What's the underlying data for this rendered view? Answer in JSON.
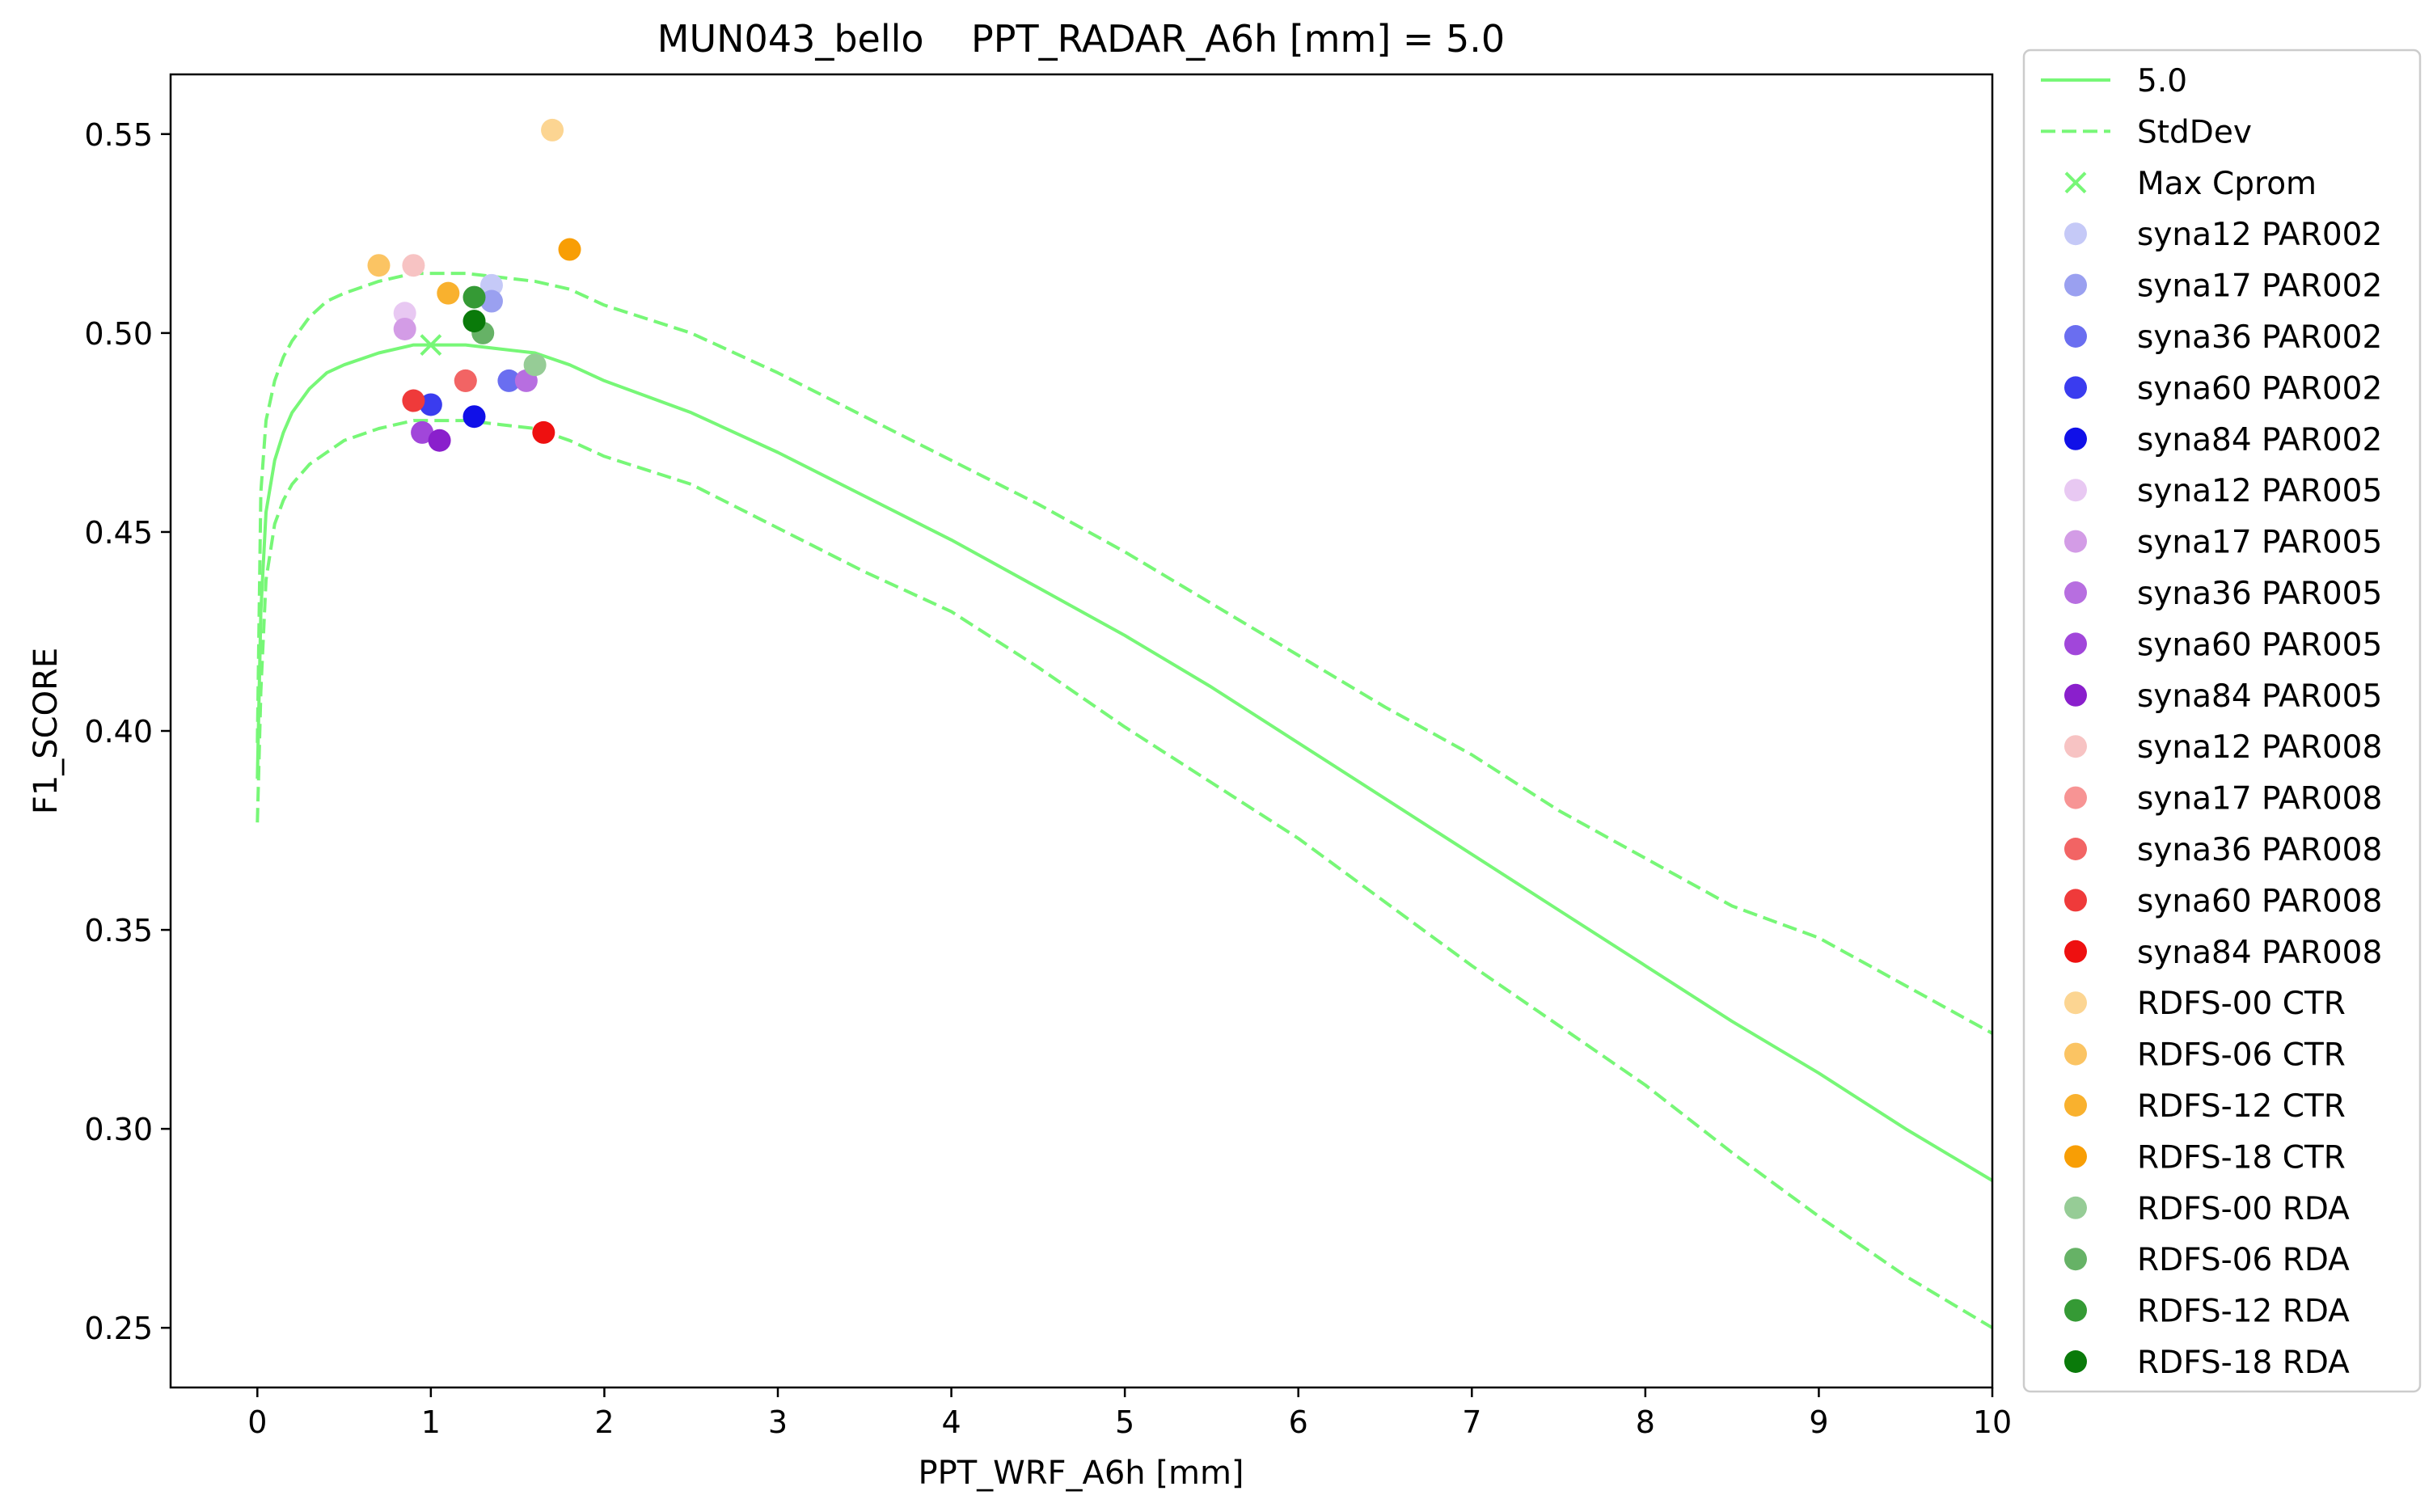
{
  "chart_data": {
    "type": "line",
    "title": "MUN043_bello    PPT_RADAR_A6h [mm] = 5.0",
    "xlabel": "PPT_WRF_A6h [mm]",
    "ylabel": "F1_SCORE",
    "xlim": [
      -0.5,
      10
    ],
    "ylim": [
      0.235,
      0.565
    ],
    "x_ticks": [
      0,
      1,
      2,
      3,
      4,
      5,
      6,
      7,
      8,
      9,
      10
    ],
    "x_tick_labels": [
      "0",
      "1",
      "2",
      "3",
      "4",
      "5",
      "6",
      "7",
      "8",
      "9",
      "10"
    ],
    "y_ticks": [
      0.25,
      0.3,
      0.35,
      0.4,
      0.45,
      0.5,
      0.55
    ],
    "y_tick_labels": [
      "0.25",
      "0.30",
      "0.35",
      "0.40",
      "0.45",
      "0.50",
      "0.55"
    ],
    "grid": false,
    "legend_position": "outside-right",
    "line_color": "#77f777",
    "lines": [
      {
        "name": "5.0",
        "style": "solid",
        "color": "#77f777",
        "x": [
          0,
          0.02,
          0.05,
          0.1,
          0.15,
          0.2,
          0.3,
          0.4,
          0.5,
          0.7,
          0.9,
          1.0,
          1.2,
          1.4,
          1.6,
          1.8,
          2.0,
          2.5,
          3.0,
          3.5,
          4.0,
          4.5,
          5.0,
          5.5,
          6.0,
          6.5,
          7.0,
          7.5,
          8.0,
          8.5,
          9.0,
          9.5,
          10.0
        ],
        "y": [
          0.388,
          0.43,
          0.455,
          0.468,
          0.475,
          0.48,
          0.486,
          0.49,
          0.492,
          0.495,
          0.497,
          0.497,
          0.497,
          0.496,
          0.495,
          0.492,
          0.488,
          0.48,
          0.47,
          0.459,
          0.448,
          0.436,
          0.424,
          0.411,
          0.397,
          0.383,
          0.369,
          0.355,
          0.341,
          0.327,
          0.314,
          0.3,
          0.287
        ]
      },
      {
        "name": "StdDev",
        "style": "dashed",
        "color": "#77f777",
        "x": [
          0,
          0.02,
          0.05,
          0.1,
          0.15,
          0.2,
          0.3,
          0.4,
          0.5,
          0.7,
          0.9,
          1.0,
          1.2,
          1.4,
          1.6,
          1.8,
          2.0,
          2.5,
          3.0,
          3.5,
          4.0,
          4.5,
          5.0,
          5.5,
          6.0,
          6.5,
          7.0,
          7.5,
          8.0,
          8.5,
          9.0,
          9.5,
          10.0
        ],
        "y": [
          0.397,
          0.46,
          0.478,
          0.488,
          0.494,
          0.498,
          0.504,
          0.508,
          0.51,
          0.513,
          0.515,
          0.515,
          0.515,
          0.514,
          0.513,
          0.511,
          0.507,
          0.5,
          0.49,
          0.479,
          0.468,
          0.457,
          0.445,
          0.432,
          0.419,
          0.406,
          0.394,
          0.38,
          0.368,
          0.356,
          0.348,
          0.336,
          0.324
        ]
      },
      {
        "name": "",
        "style": "dashed",
        "color": "#77f777",
        "x": [
          0,
          0.02,
          0.05,
          0.1,
          0.15,
          0.2,
          0.3,
          0.4,
          0.5,
          0.7,
          0.9,
          1.0,
          1.2,
          1.4,
          1.6,
          1.8,
          2.0,
          2.5,
          3.0,
          3.5,
          4.0,
          4.5,
          5.0,
          5.5,
          6.0,
          6.5,
          7.0,
          7.5,
          8.0,
          8.5,
          9.0,
          9.5,
          10.0
        ],
        "y": [
          0.377,
          0.41,
          0.438,
          0.452,
          0.458,
          0.462,
          0.467,
          0.47,
          0.473,
          0.476,
          0.478,
          0.478,
          0.478,
          0.477,
          0.476,
          0.473,
          0.469,
          0.462,
          0.451,
          0.44,
          0.43,
          0.416,
          0.401,
          0.387,
          0.373,
          0.357,
          0.341,
          0.326,
          0.311,
          0.294,
          0.278,
          0.263,
          0.25
        ]
      }
    ],
    "max_marker": {
      "name": "Max Cprom",
      "x": 1.0,
      "y": 0.497,
      "color": "#77f777",
      "symbol": "x"
    },
    "scatter": [
      {
        "name": "syna12 PAR002",
        "color": "#c5c9f7",
        "x": 1.35,
        "y": 0.512
      },
      {
        "name": "syna17 PAR002",
        "color": "#9aa0f0",
        "x": 1.35,
        "y": 0.508
      },
      {
        "name": "syna36 PAR002",
        "color": "#6a6ef0",
        "x": 1.45,
        "y": 0.488
      },
      {
        "name": "syna60 PAR002",
        "color": "#3a3cef",
        "x": 1.0,
        "y": 0.482
      },
      {
        "name": "syna84 PAR002",
        "color": "#1010e8",
        "x": 1.25,
        "y": 0.479
      },
      {
        "name": "syna12 PAR005",
        "color": "#e8c8f2",
        "x": 0.85,
        "y": 0.505
      },
      {
        "name": "syna17 PAR005",
        "color": "#d39ce6",
        "x": 0.85,
        "y": 0.501
      },
      {
        "name": "syna36 PAR005",
        "color": "#b76ee0",
        "x": 1.55,
        "y": 0.488
      },
      {
        "name": "syna60 PAR005",
        "color": "#a146da",
        "x": 0.95,
        "y": 0.475
      },
      {
        "name": "syna84 PAR005",
        "color": "#8a1fcc",
        "x": 1.05,
        "y": 0.473
      },
      {
        "name": "syna12 PAR008",
        "color": "#f7c3c3",
        "x": 0.9,
        "y": 0.517
      },
      {
        "name": "syna17 PAR008",
        "color": "#f79494",
        "x": 1.2,
        "y": 0.488
      },
      {
        "name": "syna36 PAR008",
        "color": "#f26464",
        "x": 1.2,
        "y": 0.488
      },
      {
        "name": "syna60 PAR008",
        "color": "#ef3a3a",
        "x": 0.9,
        "y": 0.483
      },
      {
        "name": "syna84 PAR008",
        "color": "#ee1010",
        "x": 1.65,
        "y": 0.475
      },
      {
        "name": "RDFS-00 CTR",
        "color": "#fcd592",
        "x": 1.7,
        "y": 0.551
      },
      {
        "name": "RDFS-06 CTR",
        "color": "#fbc463",
        "x": 0.7,
        "y": 0.517
      },
      {
        "name": "RDFS-12 CTR",
        "color": "#f9b12e",
        "x": 1.1,
        "y": 0.51
      },
      {
        "name": "RDFS-18 CTR",
        "color": "#f89e05",
        "x": 1.8,
        "y": 0.521
      },
      {
        "name": "RDFS-00 RDA",
        "color": "#96cc96",
        "x": 1.6,
        "y": 0.492
      },
      {
        "name": "RDFS-06 RDA",
        "color": "#66b266",
        "x": 1.3,
        "y": 0.5
      },
      {
        "name": "RDFS-12 RDA",
        "color": "#359a35",
        "x": 1.25,
        "y": 0.509
      },
      {
        "name": "RDFS-18 RDA",
        "color": "#0a7a0a",
        "x": 1.25,
        "y": 0.503
      }
    ]
  }
}
